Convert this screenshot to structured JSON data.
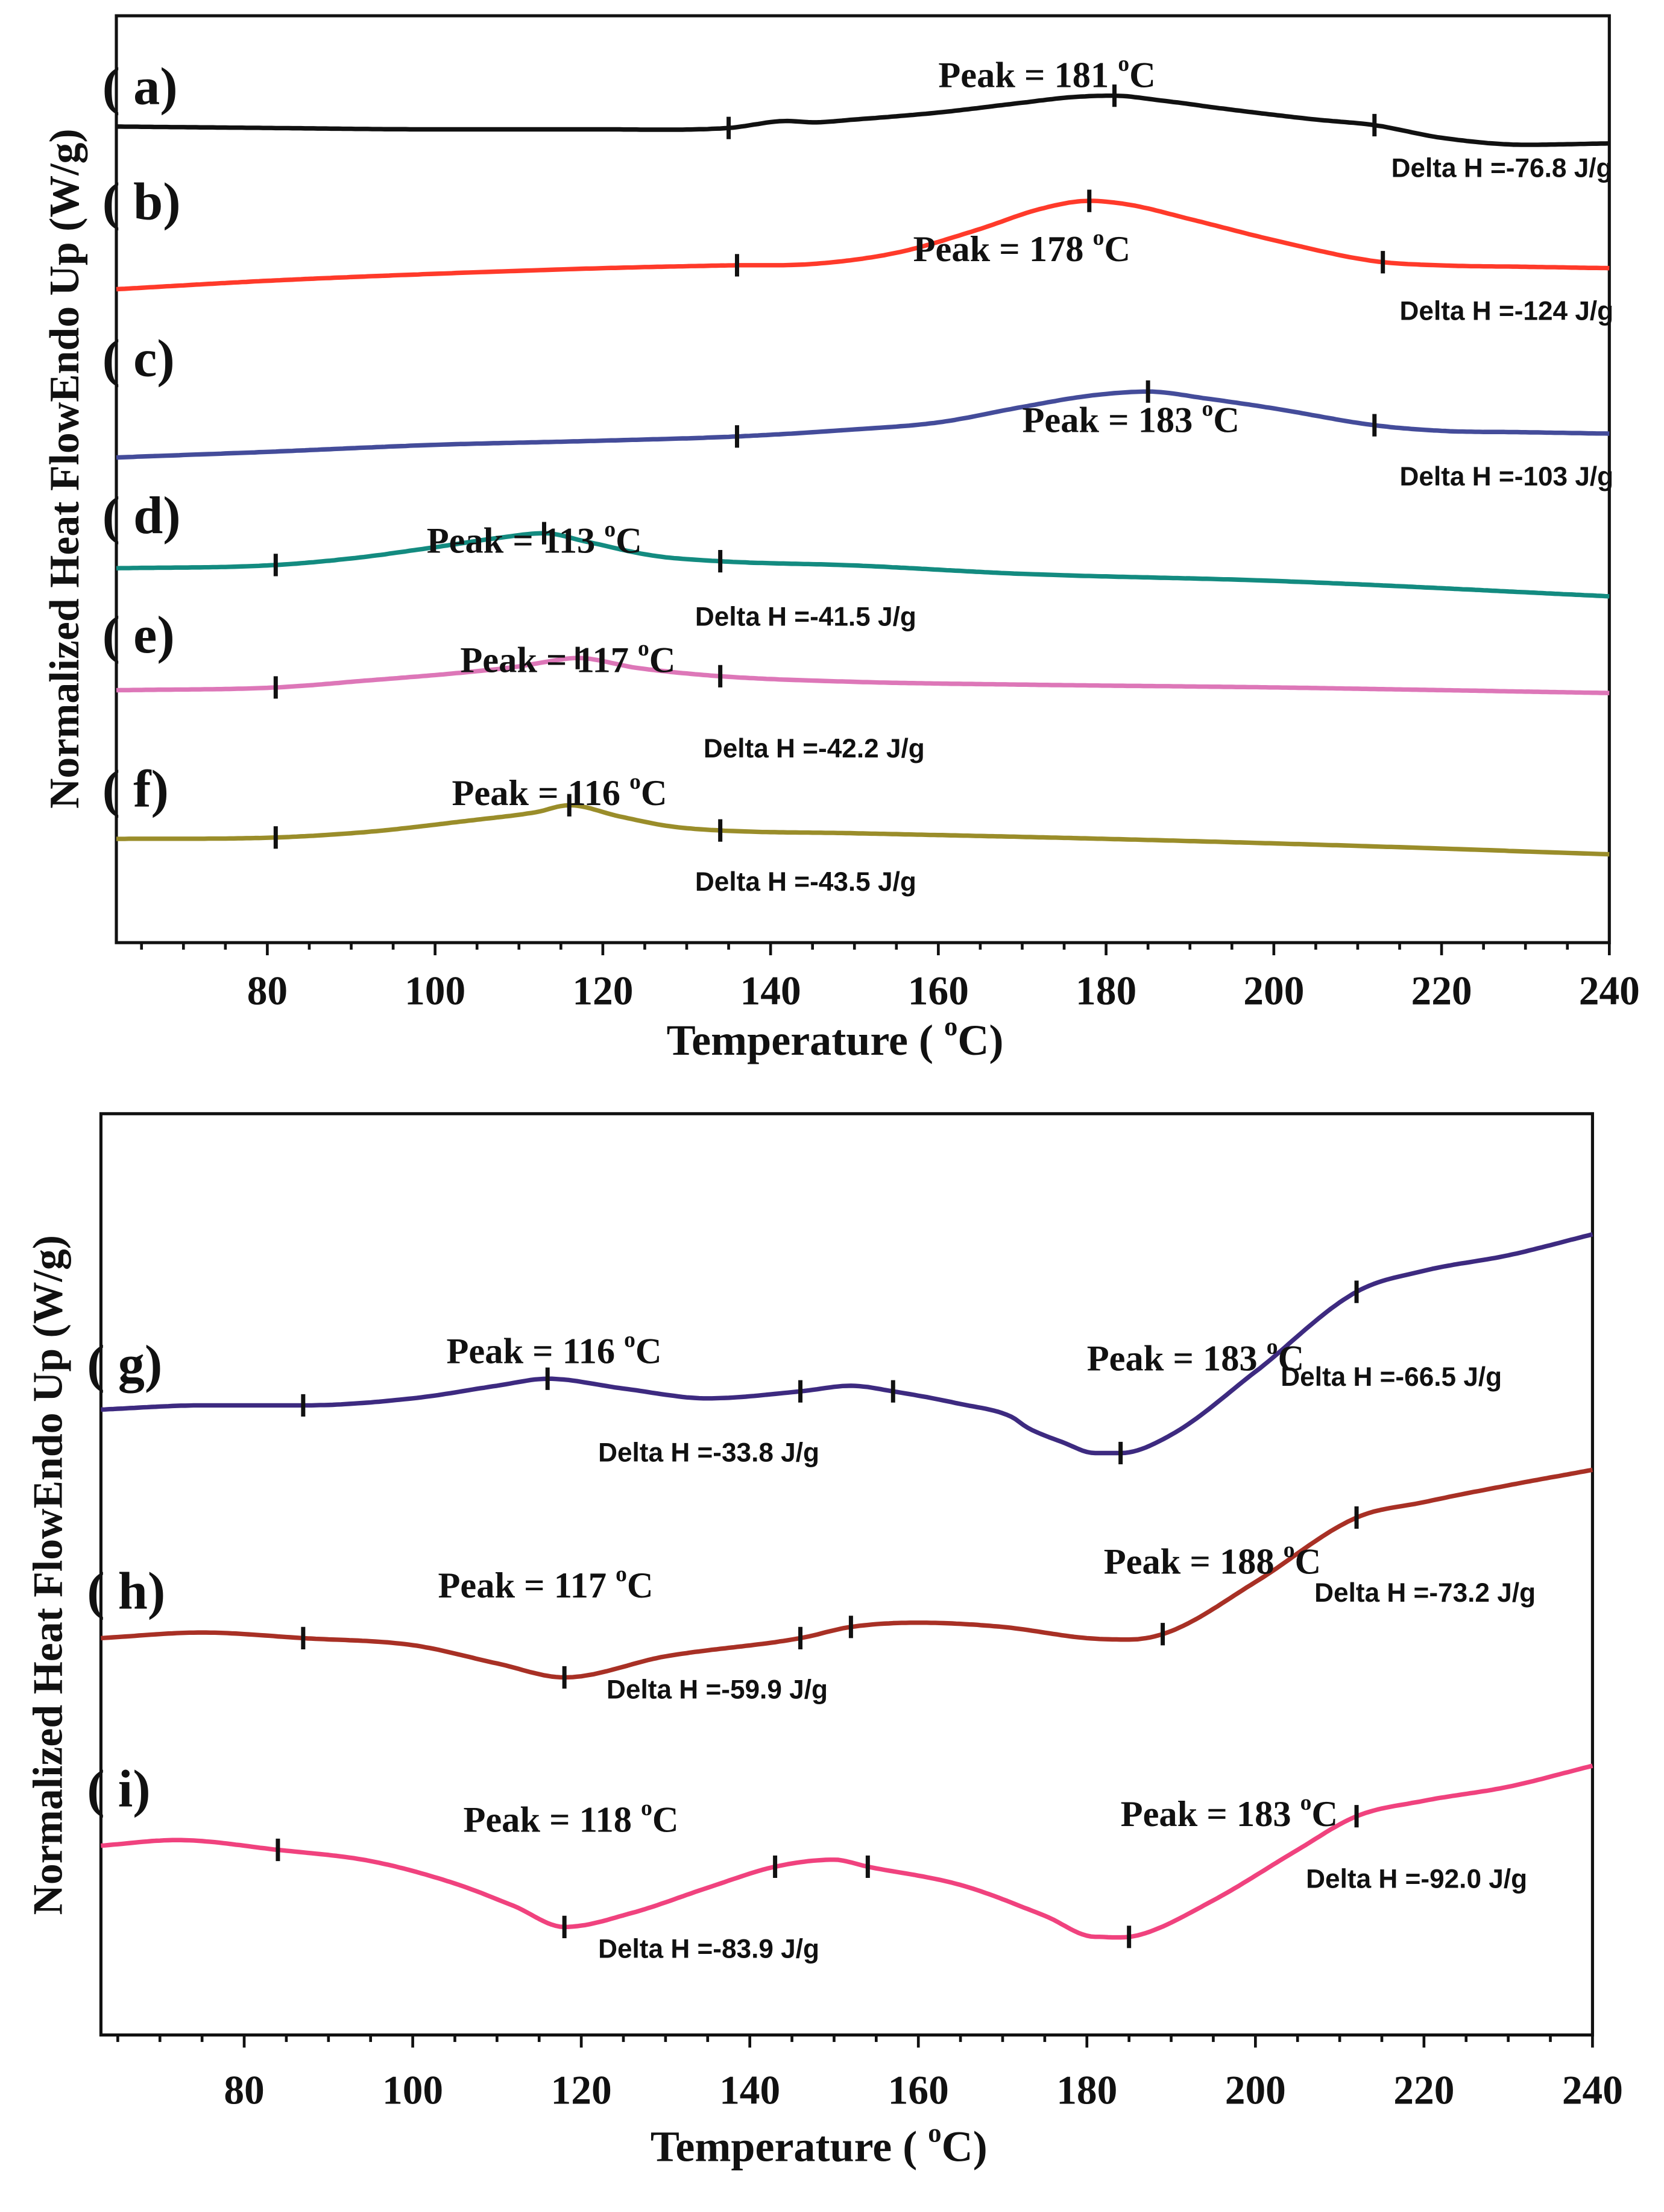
{
  "chart_data": [
    {
      "type": "line",
      "xlabel": "Temperature ( °C)",
      "ylabel": "Normalized Heat FlowEndo Up (W/g)",
      "xlim": [
        62,
        240
      ],
      "xticks": [
        80,
        100,
        120,
        140,
        160,
        180,
        200,
        220,
        240
      ],
      "series": [
        {
          "name": "( a)",
          "color": "#111111",
          "offset": 90,
          "points": [
            [
              62,
              0
            ],
            [
              80,
              1
            ],
            [
              100,
              2
            ],
            [
              120,
              2
            ],
            [
              135,
              1
            ],
            [
              142,
              -4
            ],
            [
              145,
              -3
            ],
            [
              150,
              -5
            ],
            [
              160,
              -10
            ],
            [
              170,
              -17
            ],
            [
              176,
              -21
            ],
            [
              181,
              -22
            ],
            [
              186,
              -19
            ],
            [
              195,
              -12
            ],
            [
              205,
              -5
            ],
            [
              212,
              -1
            ],
            [
              220,
              8
            ],
            [
              230,
              13
            ],
            [
              240,
              12
            ]
          ],
          "ticks": [
            135,
            181,
            212
          ],
          "peak": "Peak = 181 °C",
          "delta": "Delta H =-76.8 J/g"
        },
        {
          "name": "( b)",
          "color": "#ff3a2a",
          "offset": 190,
          "points": [
            [
              62,
              16
            ],
            [
              80,
              10
            ],
            [
              100,
              5
            ],
            [
              120,
              1
            ],
            [
              135,
              -1
            ],
            [
              145,
              -2
            ],
            [
              155,
              -10
            ],
            [
              165,
              -27
            ],
            [
              172,
              -41
            ],
            [
              178,
              -47
            ],
            [
              183,
              -44
            ],
            [
              190,
              -34
            ],
            [
              200,
              -19
            ],
            [
              212,
              -4
            ],
            [
              220,
              -1
            ],
            [
              230,
              0
            ],
            [
              240,
              1
            ]
          ],
          "ticks": [
            136,
            178,
            213
          ],
          "peak": "Peak = 178 °C",
          "delta": "Delta H =-124 J/g"
        },
        {
          "name": "( c)",
          "color": "#444c9a",
          "offset": 310,
          "points": [
            [
              62,
              16
            ],
            [
              80,
              12
            ],
            [
              100,
              7
            ],
            [
              120,
              4
            ],
            [
              136,
              1
            ],
            [
              150,
              -4
            ],
            [
              160,
              -9
            ],
            [
              170,
              -20
            ],
            [
              178,
              -28
            ],
            [
              185,
              -31
            ],
            [
              192,
              -26
            ],
            [
              200,
              -19
            ],
            [
              212,
              -7
            ],
            [
              220,
              -3
            ],
            [
              230,
              -2
            ],
            [
              240,
              -1
            ]
          ],
          "ticks": [
            136,
            185,
            212
          ],
          "peak": "Peak = 183 °C",
          "delta": "Delta H =-103 J/g"
        },
        {
          "name": "( d)",
          "color": "#138b80",
          "offset": 403,
          "points": [
            [
              62,
              2
            ],
            [
              80,
              0
            ],
            [
              90,
              -5
            ],
            [
              100,
              -13
            ],
            [
              108,
              -20
            ],
            [
              113,
              -23
            ],
            [
              118,
              -17
            ],
            [
              126,
              -7
            ],
            [
              134,
              -3
            ],
            [
              150,
              0
            ],
            [
              170,
              6
            ],
            [
              200,
              11
            ],
            [
              240,
              22
            ]
          ],
          "ticks": [
            81,
            113,
            134
          ],
          "peak": "Peak = 113 °C",
          "delta": "Delta H =-41.5 J/g"
        },
        {
          "name": "( e)",
          "color": "#dd77b8",
          "offset": 490,
          "points": [
            [
              62,
              2
            ],
            [
              81,
              0
            ],
            [
              92,
              -5
            ],
            [
              104,
              -11
            ],
            [
              110,
              -15
            ],
            [
              113,
              -18
            ],
            [
              117,
              -21
            ],
            [
              124,
              -14
            ],
            [
              134,
              -8
            ],
            [
              150,
              -4
            ],
            [
              170,
              -2
            ],
            [
              200,
              0
            ],
            [
              240,
              4
            ]
          ],
          "ticks": [
            81,
            117,
            134
          ],
          "peak": "Peak = 117 °C",
          "delta": "Delta H =-42.2 J/g"
        },
        {
          "name": "( f)",
          "color": "#9a8d2a",
          "offset": 596,
          "points": [
            [
              62,
              2
            ],
            [
              81,
              1
            ],
            [
              92,
              -3
            ],
            [
              104,
              -11
            ],
            [
              112,
              -17
            ],
            [
              116,
              -22
            ],
            [
              122,
              -14
            ],
            [
              128,
              -7
            ],
            [
              134,
              -4
            ],
            [
              150,
              -2
            ],
            [
              180,
              2
            ],
            [
              210,
              7
            ],
            [
              240,
              13
            ]
          ],
          "ticks": [
            81,
            116,
            134
          ],
          "peak": "Peak = 116 °C",
          "delta": "Delta H =-43.5 J/g"
        }
      ],
      "peak_labels": [
        [
          160,
          52
        ],
        [
          157,
          176
        ],
        [
          170,
          298
        ],
        [
          99,
          384
        ],
        [
          103,
          469
        ],
        [
          102,
          564
        ]
      ],
      "delta_labels": [
        [
          214,
          118
        ],
        [
          215,
          220
        ],
        [
          215,
          338
        ],
        [
          131,
          438
        ],
        [
          132,
          532
        ],
        [
          131,
          627
        ]
      ],
      "name_labels": [
        [
          65,
          64
        ],
        [
          65,
          146
        ],
        [
          65,
          258
        ],
        [
          65,
          370
        ],
        [
          65,
          455
        ],
        [
          65,
          565
        ]
      ]
    },
    {
      "type": "line",
      "xlabel": "Temperature ( °C)",
      "ylabel": "Normalized Heat FlowEndo Up (W/g)",
      "xlim": [
        63,
        240
      ],
      "xticks": [
        80,
        100,
        120,
        140,
        160,
        180,
        200,
        220,
        240
      ],
      "series": [
        {
          "name": "( g)",
          "color": "#3d2a80",
          "offset": 1005,
          "points": [
            [
              63,
              0
            ],
            [
              75,
              -3
            ],
            [
              87,
              -3
            ],
            [
              100,
              -8
            ],
            [
              110,
              -17
            ],
            [
              116,
              -22
            ],
            [
              125,
              -15
            ],
            [
              135,
              -8
            ],
            [
              146,
              -13
            ],
            [
              152,
              -17
            ],
            [
              157,
              -13
            ],
            [
              165,
              -4
            ],
            [
              171,
              5
            ],
            [
              173,
              13
            ],
            [
              177,
              23
            ],
            [
              181,
              31
            ],
            [
              184,
              31
            ],
            [
              190,
              18
            ],
            [
              200,
              -27
            ],
            [
              212,
              -84
            ],
            [
              220,
              -99
            ],
            [
              230,
              -110
            ],
            [
              240,
              -125
            ]
          ],
          "ticks": [
            87,
            116,
            146,
            157,
            184,
            212
          ],
          "peak": [
            "Peak = 116 °C",
            "Peak = 183 °C"
          ],
          "delta": [
            "Delta H =-33.8 J/g",
            "Delta H =-66.5 J/g"
          ]
        },
        {
          "name": "( h)",
          "color": "#a83025",
          "offset": 1168,
          "points": [
            [
              63,
              0
            ],
            [
              75,
              -4
            ],
            [
              87,
              0
            ],
            [
              100,
              5
            ],
            [
              110,
              18
            ],
            [
              118,
              28
            ],
            [
              130,
              13
            ],
            [
              146,
              0
            ],
            [
              152,
              -8
            ],
            [
              160,
              -11
            ],
            [
              170,
              -8
            ],
            [
              180,
              0
            ],
            [
              185,
              1
            ],
            [
              190,
              -5
            ],
            [
              200,
              -40
            ],
            [
              212,
              -86
            ],
            [
              220,
              -97
            ],
            [
              230,
              -109
            ],
            [
              240,
              -120
            ]
          ],
          "ticks": [
            87,
            118,
            146,
            152,
            189,
            212
          ],
          "peak": [
            "Peak = 117 °C",
            "Peak = 188 °C"
          ],
          "delta": [
            "Delta H =-59.9 J/g",
            "Delta H =-73.2 J/g"
          ]
        },
        {
          "name": "( i)",
          "color": "#f0427e",
          "offset": 1316,
          "points": [
            [
              63,
              0
            ],
            [
              72,
              -4
            ],
            [
              84,
              3
            ],
            [
              95,
              11
            ],
            [
              105,
              27
            ],
            [
              112,
              43
            ],
            [
              118,
              58
            ],
            [
              126,
              48
            ],
            [
              135,
              30
            ],
            [
              143,
              15
            ],
            [
              150,
              10
            ],
            [
              154,
              15
            ],
            [
              165,
              28
            ],
            [
              175,
              50
            ],
            [
              181,
              65
            ],
            [
              186,
              64
            ],
            [
              195,
              39
            ],
            [
              205,
              3
            ],
            [
              212,
              -21
            ],
            [
              220,
              -32
            ],
            [
              230,
              -42
            ],
            [
              240,
              -57
            ]
          ],
          "ticks": [
            84,
            118,
            143,
            154,
            185,
            212
          ],
          "peak": [
            "Peak = 118 °C",
            "Peak = 183 °C"
          ],
          "delta": [
            "Delta H =-83.9 J/g",
            "Delta H =-92.0 J/g"
          ]
        }
      ],
      "peak_labels": [
        [
          104,
          962
        ],
        [
          180,
          967
        ],
        [
          103,
          1129
        ],
        [
          182,
          1112
        ],
        [
          106,
          1296
        ],
        [
          184,
          1292
        ]
      ],
      "delta_labels": [
        [
          122,
          1034
        ],
        [
          203,
          980
        ],
        [
          123,
          1203
        ],
        [
          207,
          1134
        ],
        [
          122,
          1388
        ],
        [
          206,
          1338
        ]
      ],
      "name_labels": [
        [
          66,
          975
        ],
        [
          66,
          1137
        ],
        [
          66,
          1278
        ]
      ]
    }
  ]
}
